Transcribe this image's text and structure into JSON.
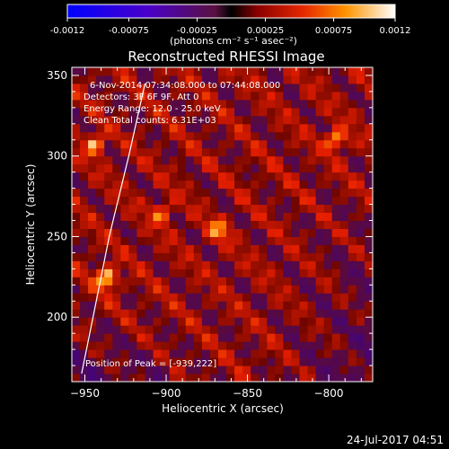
{
  "chart_data": {
    "type": "heatmap",
    "title": "Reconstructed RHESSI Image",
    "xlabel": "Heliocentric X (arcsec)",
    "ylabel": "Heliocentric Y (arcsec)",
    "xlim": [
      -958,
      -773
    ],
    "ylim": [
      160,
      355
    ],
    "xticks": [
      -950,
      -900,
      -850,
      -800
    ],
    "yticks": [
      200,
      250,
      300,
      350
    ],
    "colorbar": {
      "range": [
        -0.0012,
        0.0012
      ],
      "ticks": [
        "-0.0012",
        "-0.00075",
        "-0.00025",
        "0.00025",
        "0.00075",
        "0.0012"
      ],
      "units": "(photons cm⁻² s⁻¹ asec⁻²)"
    },
    "annotations": {
      "time_range": "6-Nov-2014 07:34:08.000 to 07:44:08.000",
      "detectors": "Detectors: 3F 6F 9F, Att 0",
      "energy_range": "Energy Range: 12.0 - 25.0 keV",
      "clean": "Clean    Total counts: 6.31E+03",
      "peak": "Position of Peak = [-939,222]"
    },
    "peak": {
      "x": -939,
      "y": 222
    },
    "hot_spots": [
      {
        "x": -939,
        "y": 222,
        "value": 0.0012
      },
      {
        "x": -946,
        "y": 305,
        "value": 0.00095
      },
      {
        "x": -798,
        "y": 308,
        "value": 0.001
      },
      {
        "x": -870,
        "y": 252,
        "value": 0.0008
      },
      {
        "x": -905,
        "y": 262,
        "value": 0.0007
      }
    ],
    "limb_curve": [
      {
        "x": -952,
        "y": 165
      },
      {
        "x": -944,
        "y": 205
      },
      {
        "x": -935,
        "y": 250
      },
      {
        "x": -923,
        "y": 300
      },
      {
        "x": -913,
        "y": 345
      }
    ]
  },
  "footer": {
    "timestamp": "24-Jul-2017 04:51"
  }
}
